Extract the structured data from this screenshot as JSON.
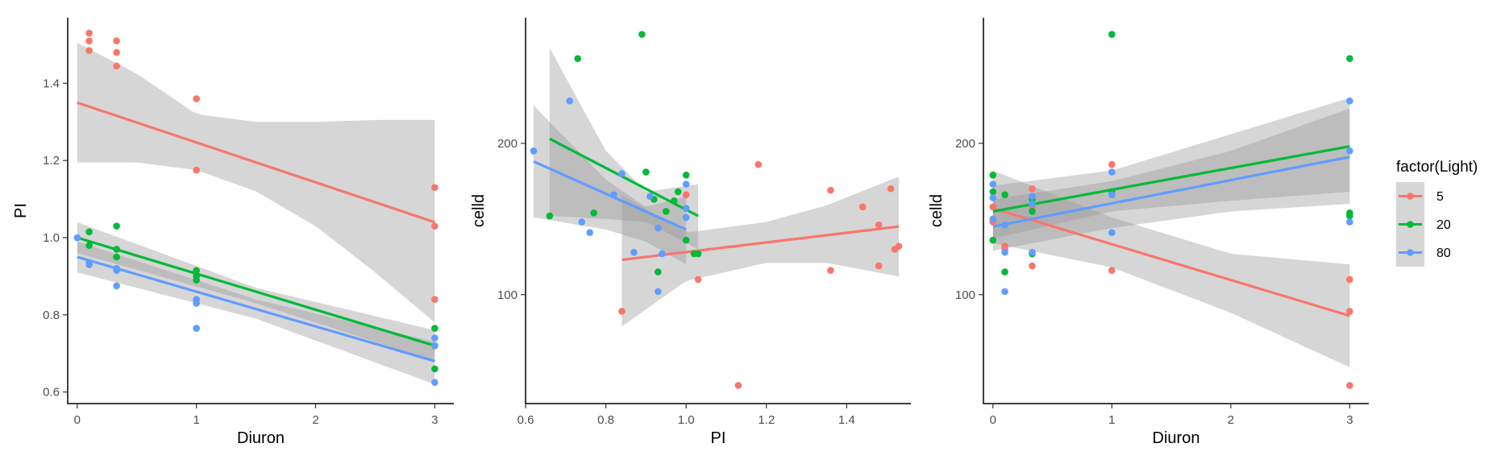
{
  "colors": {
    "light_5": "#F8766D",
    "light_20": "#00BA38",
    "light_80": "#619CFF",
    "ribbon": "#999999",
    "axis": "#000000"
  },
  "legend": {
    "title": "factor(Light)",
    "entries": [
      {
        "label": "5",
        "color": "#F8766D"
      },
      {
        "label": "20",
        "color": "#00BA38"
      },
      {
        "label": "80",
        "color": "#619CFF"
      }
    ]
  },
  "chart_data": [
    {
      "type": "scatter",
      "xlabel": "Diuron",
      "ylabel": "PI",
      "xlim": [
        -0.08,
        3.16
      ],
      "ylim": [
        0.57,
        1.57
      ],
      "xticks": [
        0,
        1,
        2,
        3
      ],
      "yticks": [
        0.6,
        0.8,
        1.0,
        1.2,
        1.4
      ],
      "ytick_labels": [
        "0.6",
        "0.8",
        "1.0",
        "1.2",
        "1.4"
      ],
      "series": [
        {
          "name": "5",
          "color": "#F8766D",
          "points": [
            [
              0.1,
              1.53
            ],
            [
              0.1,
              1.51
            ],
            [
              0.1,
              1.485
            ],
            [
              0.33,
              1.51
            ],
            [
              0.33,
              1.48
            ],
            [
              0.33,
              1.445
            ],
            [
              1,
              1.36
            ],
            [
              1,
              1.175
            ],
            [
              3,
              1.13
            ],
            [
              3,
              1.03
            ],
            [
              3,
              0.84
            ]
          ],
          "fit": {
            "x": [
              0,
              3
            ],
            "y": [
              1.35,
              1.04
            ]
          },
          "band": {
            "x": [
              0,
              0.5,
              1,
              1.5,
              2,
              2.5,
              3
            ],
            "lo": [
              1.195,
              1.195,
              1.175,
              1.12,
              1.03,
              0.91,
              0.78
            ],
            "hi": [
              1.505,
              1.425,
              1.32,
              1.3,
              1.3,
              1.305,
              1.305
            ]
          }
        },
        {
          "name": "20",
          "color": "#00BA38",
          "points": [
            [
              0.1,
              1.015
            ],
            [
              0.1,
              0.98
            ],
            [
              0.33,
              1.03
            ],
            [
              0.33,
              0.97
            ],
            [
              0.33,
              0.95
            ],
            [
              1,
              0.915
            ],
            [
              1,
              0.9
            ],
            [
              1,
              0.89
            ],
            [
              3,
              0.765
            ],
            [
              3,
              0.72
            ],
            [
              3,
              0.66
            ]
          ],
          "fit": {
            "x": [
              0,
              3
            ],
            "y": [
              1.0,
              0.72
            ]
          },
          "band": {
            "x": [
              0,
              1.5,
              3
            ],
            "lo": [
              0.96,
              0.83,
              0.68
            ],
            "hi": [
              1.04,
              0.87,
              0.76
            ]
          }
        },
        {
          "name": "80",
          "color": "#619CFF",
          "points": [
            [
              0,
              1.0
            ],
            [
              0.1,
              0.935
            ],
            [
              0.1,
              0.93
            ],
            [
              0.33,
              0.92
            ],
            [
              0.33,
              0.915
            ],
            [
              0.33,
              0.875
            ],
            [
              1,
              0.84
            ],
            [
              1,
              0.83
            ],
            [
              1,
              0.765
            ],
            [
              3,
              0.74
            ],
            [
              3,
              0.72
            ],
            [
              3,
              0.625
            ]
          ],
          "fit": {
            "x": [
              0,
              3
            ],
            "y": [
              0.95,
              0.68
            ]
          },
          "band": {
            "x": [
              0,
              1.5,
              3
            ],
            "lo": [
              0.91,
              0.79,
              0.62
            ],
            "hi": [
              0.99,
              0.84,
              0.73
            ]
          }
        }
      ]
    },
    {
      "type": "scatter",
      "xlabel": "PI",
      "ylabel": "celld",
      "xlim": [
        0.6,
        1.56
      ],
      "ylim": [
        28,
        283
      ],
      "xticks": [
        0.6,
        0.8,
        1.0,
        1.2,
        1.4
      ],
      "xtick_labels": [
        "0.6",
        "0.8",
        "1.0",
        "1.2",
        "1.4"
      ],
      "yticks": [
        100,
        200
      ],
      "series": [
        {
          "name": "5",
          "color": "#F8766D",
          "points": [
            [
              0.84,
              89
            ],
            [
              1.0,
              166
            ],
            [
              1.03,
              110
            ],
            [
              1.13,
              40
            ],
            [
              1.18,
              186
            ],
            [
              1.36,
              169
            ],
            [
              1.36,
              116
            ],
            [
              1.44,
              158
            ],
            [
              1.48,
              146
            ],
            [
              1.48,
              119
            ],
            [
              1.51,
              170
            ],
            [
              1.52,
              130
            ],
            [
              1.53,
              132
            ]
          ],
          "fit": {
            "x": [
              0.84,
              1.53
            ],
            "y": [
              123,
              145
            ]
          },
          "band": {
            "x": [
              0.84,
              1.0,
              1.2,
              1.35,
              1.53
            ],
            "lo": [
              79,
              109,
              121,
              121,
              112
            ],
            "hi": [
              166,
              141,
              148,
              159,
              178
            ]
          }
        },
        {
          "name": "20",
          "color": "#00BA38",
          "points": [
            [
              0.66,
              152
            ],
            [
              0.73,
              256
            ],
            [
              0.77,
              154
            ],
            [
              0.89,
              272
            ],
            [
              0.9,
              181
            ],
            [
              0.92,
              163
            ],
            [
              0.93,
              115
            ],
            [
              0.95,
              155
            ],
            [
              0.97,
              162
            ],
            [
              0.98,
              168
            ],
            [
              1.0,
              179
            ],
            [
              1.0,
              136
            ],
            [
              1.02,
              127
            ],
            [
              1.03,
              127
            ]
          ],
          "fit": {
            "x": [
              0.66,
              1.03
            ],
            "y": [
              203,
              152
            ]
          },
          "band": {
            "x": [
              0.66,
              0.8,
              0.9,
              1.03
            ],
            "lo": [
              152,
              150,
              148,
              130
            ],
            "hi": [
              263,
              195,
              168,
              173
            ]
          }
        },
        {
          "name": "80",
          "color": "#619CFF",
          "points": [
            [
              0.62,
              195
            ],
            [
              0.71,
              228
            ],
            [
              0.74,
              148
            ],
            [
              0.76,
              141
            ],
            [
              0.82,
              166
            ],
            [
              0.84,
              180
            ],
            [
              0.87,
              128
            ],
            [
              0.91,
              165
            ],
            [
              0.93,
              144
            ],
            [
              0.93,
              102
            ],
            [
              0.94,
              127
            ],
            [
              1.0,
              173
            ],
            [
              1.0,
              157
            ],
            [
              1.0,
              151
            ]
          ],
          "fit": {
            "x": [
              0.62,
              1.0
            ],
            "y": [
              188,
              143
            ]
          },
          "band": {
            "x": [
              0.62,
              0.8,
              0.9,
              1.0
            ],
            "lo": [
              151,
              143,
              135,
              120
            ],
            "hi": [
              225,
              176,
              158,
              165
            ]
          }
        }
      ]
    },
    {
      "type": "scatter",
      "xlabel": "Diuron",
      "ylabel": "celld",
      "xlim": [
        -0.08,
        3.16
      ],
      "ylim": [
        28,
        283
      ],
      "xticks": [
        0,
        1,
        2,
        3
      ],
      "yticks": [
        100,
        200
      ],
      "series": [
        {
          "name": "5",
          "color": "#F8766D",
          "points": [
            [
              0,
              158
            ],
            [
              0,
              150
            ],
            [
              0,
              148
            ],
            [
              0.1,
              132
            ],
            [
              0.1,
              130
            ],
            [
              0.33,
              170
            ],
            [
              0.33,
              158
            ],
            [
              0.33,
              119
            ],
            [
              1,
              186
            ],
            [
              1,
              116
            ],
            [
              3,
              110
            ],
            [
              3,
              89
            ],
            [
              3,
              40
            ]
          ],
          "fit": {
            "x": [
              0,
              3
            ],
            "y": [
              157,
              86
            ]
          },
          "band": {
            "x": [
              0,
              1,
              2,
              3
            ],
            "lo": [
              134,
              118,
              88,
              52
            ],
            "hi": [
              182,
              151,
              127,
              120
            ]
          }
        },
        {
          "name": "20",
          "color": "#00BA38",
          "points": [
            [
              0,
              179
            ],
            [
              0,
              168
            ],
            [
              0,
              136
            ],
            [
              0.1,
              166
            ],
            [
              0.1,
              115
            ],
            [
              0.33,
              163
            ],
            [
              0.33,
              155
            ],
            [
              0.33,
              127
            ],
            [
              1,
              272
            ],
            [
              1,
              168
            ],
            [
              3,
              256
            ],
            [
              3,
              154
            ],
            [
              3,
              152
            ]
          ],
          "fit": {
            "x": [
              0,
              3
            ],
            "y": [
              155,
              198
            ]
          },
          "band": {
            "x": [
              0,
              1,
              2,
              3
            ],
            "lo": [
              137,
              155,
              162,
              168
            ],
            "hi": [
              172,
              182,
              206,
              230
            ]
          }
        },
        {
          "name": "80",
          "color": "#619CFF",
          "points": [
            [
              0,
              173
            ],
            [
              0,
              164
            ],
            [
              0,
              150
            ],
            [
              0.1,
              146
            ],
            [
              0.1,
              128
            ],
            [
              0.1,
              102
            ],
            [
              0.33,
              165
            ],
            [
              0.33,
              160
            ],
            [
              0.33,
              128
            ],
            [
              1,
              181
            ],
            [
              1,
              166
            ],
            [
              1,
              141
            ],
            [
              3,
              228
            ],
            [
              3,
              195
            ],
            [
              3,
              148
            ]
          ],
          "fit": {
            "x": [
              0,
              3
            ],
            "y": [
              145,
              191
            ]
          },
          "band": {
            "x": [
              0,
              1,
              2,
              3
            ],
            "lo": [
              129,
              144,
              155,
              160
            ],
            "hi": [
              163,
              175,
              195,
              223
            ]
          }
        }
      ]
    }
  ]
}
